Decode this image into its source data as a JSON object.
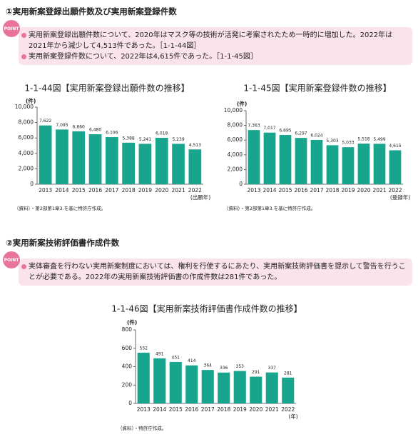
{
  "sections": [
    {
      "heading": "①実用新案登録出願件数及び実用新案登録件数",
      "point_label": "POINT",
      "points": [
        "実用新案登録出願件数について、2020年はマスク等の技術が活発に考案されたため一時的に増加した。2022年は2021年から減少して4,513件であった。［1-1-44図］",
        "実用新案登録件数について、2022年は4,615件であった。［1-1-45図］"
      ]
    },
    {
      "heading": "②実用新案技術評価書作成件数",
      "point_label": "POINT",
      "points": [
        "実体審査を行わない実用新案制度においては、権利を行使するにあたり、実用新案技術評価書を提示して警告を行うことが必要である。2022年の実用新案技術評価書の作成件数は281件であった。"
      ]
    }
  ],
  "chart_data": [
    {
      "type": "bar",
      "title": "1-1-44図【実用新案登録出願件数の推移】",
      "y_unit": "(件)",
      "x_label": "(出願年)",
      "source": "（資料）・第2部第1章3.を基に特許庁作成。",
      "color": "#17a58e",
      "categories": [
        "2013",
        "2014",
        "2015",
        "2016",
        "2017",
        "2018",
        "2019",
        "2020",
        "2021",
        "2022"
      ],
      "values": [
        7622,
        7095,
        6860,
        6480,
        6106,
        5388,
        5241,
        6018,
        5239,
        4513
      ],
      "value_labels": [
        "7,622",
        "7,095",
        "6,860",
        "6,480",
        "6,106",
        "5,388",
        "5,241",
        "6,018",
        "5,239",
        "4,513"
      ],
      "ylim": [
        0,
        10000
      ],
      "yticks": [
        0,
        {
          "value": 2000,
          "label": "2,000"
        },
        {
          "value": 4000,
          "label": "4,000"
        },
        {
          "value": 6000,
          "label": "6,000"
        },
        {
          "value": 8000,
          "label": "8,000"
        },
        {
          "value": 10000,
          "label": "10,000"
        }
      ]
    },
    {
      "type": "bar",
      "title": "1-1-45図【実用新案登録件数の推移】",
      "y_unit": "(件)",
      "x_label": "(登録年)",
      "source": "（資料）・第2部第1章3.を基に特許庁作成。",
      "color": "#17a58e",
      "categories": [
        "2013",
        "2014",
        "2015",
        "2016",
        "2017",
        "2018",
        "2019",
        "2020",
        "2021",
        "2022"
      ],
      "values": [
        7363,
        7017,
        6695,
        6297,
        6024,
        5303,
        5033,
        5518,
        5499,
        4615
      ],
      "value_labels": [
        "7,363",
        "7,017",
        "6,695",
        "6,297",
        "6,024",
        "5,303",
        "5,033",
        "5,518",
        "5,499",
        "4,615"
      ],
      "ylim": [
        0,
        10000
      ],
      "yticks": [
        0,
        {
          "value": 2000,
          "label": "2,000"
        },
        {
          "value": 4000,
          "label": "4,000"
        },
        {
          "value": 6000,
          "label": "6,000"
        },
        {
          "value": 8000,
          "label": "8,000"
        },
        {
          "value": 10000,
          "label": "10,000"
        }
      ]
    },
    {
      "type": "bar",
      "title": "1-1-46図【実用新案技術評価書作成件数の推移】",
      "y_unit": "(件)",
      "x_label": "(年)",
      "source": "（資料）・特許庁作成。",
      "color": "#17a58e",
      "categories": [
        "2013",
        "2014",
        "2015",
        "2016",
        "2017",
        "2018",
        "2019",
        "2020",
        "2021",
        "2022"
      ],
      "values": [
        552,
        491,
        451,
        414,
        364,
        336,
        353,
        291,
        337,
        281
      ],
      "ylim": [
        0,
        800
      ],
      "yticks": [
        0,
        200,
        400,
        600,
        800
      ]
    }
  ]
}
